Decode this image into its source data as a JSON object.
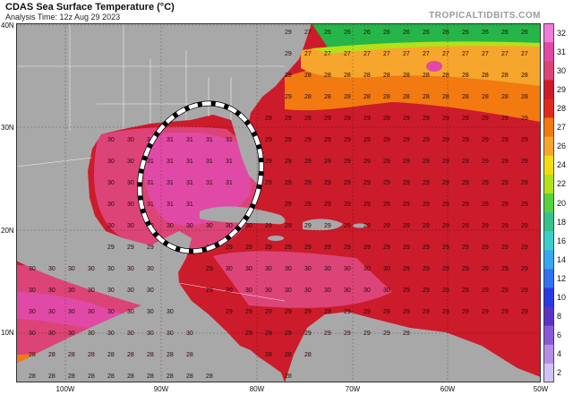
{
  "header": {
    "title": "CDAS Sea Surface Temperature (°C)",
    "subtitle": "Analysis Time: 12z Aug 29 2023",
    "brand": "TROPICALTIDBITS.COM"
  },
  "axes": {
    "lat_labels": [
      "40N",
      "30N",
      "20N",
      "10N"
    ],
    "lon_labels": [
      "100W",
      "90W",
      "80W",
      "70W",
      "60W",
      "50W"
    ]
  },
  "colorbar": {
    "labels": [
      "32",
      "31",
      "30",
      "29",
      "28",
      "27",
      "26",
      "24",
      "22",
      "20",
      "18",
      "16",
      "14",
      "12",
      "10",
      "8",
      "6",
      "4",
      "2"
    ],
    "colors": [
      "#f07ad8",
      "#e04aa6",
      "#dc4478",
      "#cc1b2a",
      "#e02a1e",
      "#f27a10",
      "#f6a62c",
      "#f0dc10",
      "#b4e01a",
      "#56d23e",
      "#36c28a",
      "#3ccec8",
      "#3aa6ec",
      "#3272ee",
      "#2a38e2",
      "#5a32c4",
      "#8a5ad6",
      "#b48ee6",
      "#d2c2f4"
    ]
  },
  "legend_colors": {
    "land": "#a8a8a8",
    "sst_30": "#dc4478",
    "sst_31": "#e04aa6",
    "sst_29": "#cc1b2a",
    "sst_28": "#f27a10",
    "sst_27": "#f6a62c",
    "sst_26": "#26b548"
  },
  "annotation": {
    "shape": "dashed-ellipse",
    "color": "#ffffff",
    "description_region": "eastern Gulf of Mexico"
  }
}
